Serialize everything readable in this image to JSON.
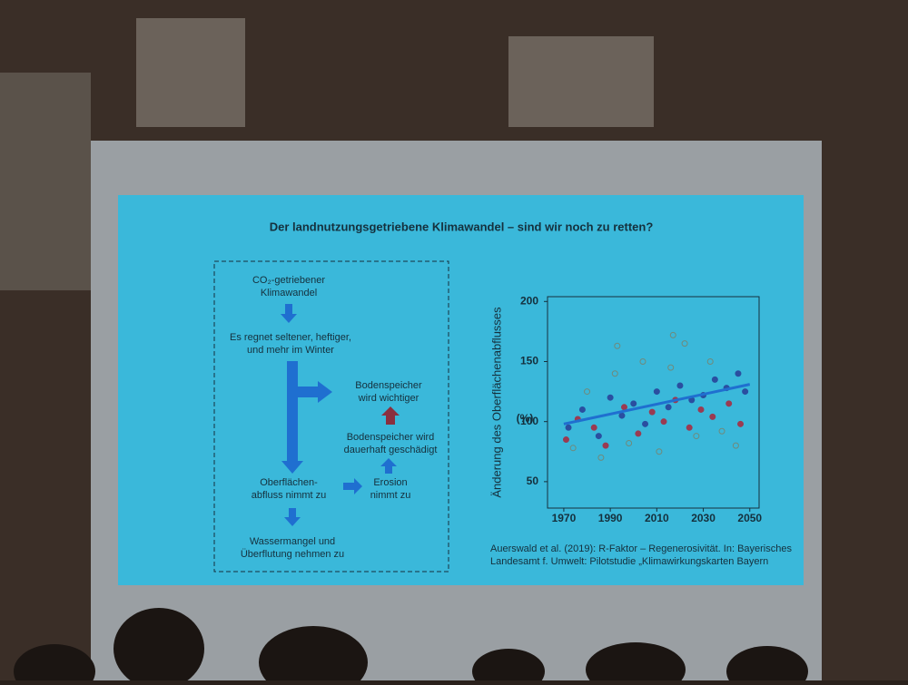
{
  "slide": {
    "title": "Der landnutzungsgetriebene Klimawandel – sind wir noch zu retten?",
    "diagram": {
      "nodes": [
        {
          "lines": [
            "CO₂-getriebener",
            "Klimawandel"
          ]
        },
        {
          "lines": [
            "Es regnet seltener, heftiger,",
            "und mehr im Winter"
          ]
        },
        {
          "lines": [
            "Bodenspeicher",
            "wird wichtiger"
          ]
        },
        {
          "lines": [
            "Bodenspeicher wird",
            "dauerhaft geschädigt"
          ]
        },
        {
          "lines": [
            "Oberflächen-",
            "abfluss nimmt zu"
          ]
        },
        {
          "lines": [
            "Erosion",
            "nimmt zu"
          ]
        },
        {
          "lines": [
            "Wassermangel und",
            "Überflutung nehmen zu"
          ]
        }
      ]
    },
    "citation": [
      "Auerswald et al. (2019): R-Faktor – Regenerosivität. In: Bayerisches",
      "Landesamt f. Umwelt: Pilotstudie „Klimawirkungskarten Bayern"
    ]
  },
  "chart_data": {
    "type": "scatter",
    "y_label": "Änderung des Oberflächenabflusses",
    "y_unit": "(%)",
    "xlim": [
      1963,
      2054
    ],
    "ylim": [
      28,
      204
    ],
    "xticks": [
      1970,
      1990,
      2010,
      2030,
      2050
    ],
    "yticks": [
      50,
      100,
      150,
      200
    ],
    "series": [
      {
        "color": "#2a4fa0",
        "filled": true,
        "x": [
          1972,
          1978,
          1985,
          1990,
          1995,
          2000,
          2005,
          2010,
          2015,
          2020,
          2025,
          2030,
          2035,
          2040,
          2045,
          2048
        ],
        "values": [
          95,
          110,
          88,
          120,
          105,
          115,
          98,
          125,
          112,
          130,
          118,
          122,
          135,
          128,
          140,
          125
        ]
      },
      {
        "color": "#9a3b52",
        "filled": true,
        "x": [
          1971,
          1976,
          1983,
          1988,
          1996,
          2002,
          2008,
          2013,
          2018,
          2024,
          2029,
          2034,
          2041,
          2046
        ],
        "values": [
          85,
          102,
          95,
          80,
          112,
          90,
          108,
          100,
          118,
          95,
          110,
          104,
          115,
          98
        ]
      },
      {
        "color": "#6f8a7c",
        "filled": false,
        "x": [
          1974,
          1980,
          1986,
          1992,
          1998,
          2004,
          2011,
          2016,
          2022,
          2027,
          2033,
          2038,
          2044,
          1993,
          2017
        ],
        "values": [
          78,
          125,
          70,
          140,
          82,
          150,
          75,
          145,
          165,
          88,
          150,
          92,
          80,
          163,
          172
        ]
      }
    ],
    "trend": {
      "color": "#1f6fd0",
      "x": [
        1970,
        2050
      ],
      "values": [
        98,
        131
      ]
    }
  }
}
